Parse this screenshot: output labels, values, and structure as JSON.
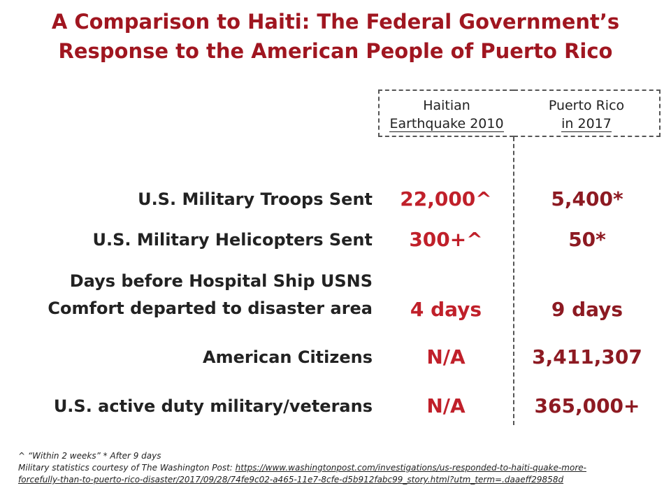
{
  "title": {
    "line1": "A Comparison to Haiti: The Federal Government’s",
    "line2": "Response to the American People of Puerto Rico"
  },
  "columns": {
    "haiti": {
      "line1": "Haitian",
      "line2": "Earthquake 2010"
    },
    "puerto_rico": {
      "line1": "Puerto Rico",
      "line2": "in 2017"
    }
  },
  "rows": [
    {
      "label": "U.S. Military Troops Sent",
      "haiti": "22,000^",
      "puerto_rico": "5,400*"
    },
    {
      "label": "U.S. Military Helicopters Sent",
      "haiti": "300+^",
      "puerto_rico": "50*"
    },
    {
      "label_line1": "Days before Hospital Ship USNS",
      "label_line2": "Comfort departed to disaster area",
      "haiti": "4 days",
      "puerto_rico": "9 days"
    },
    {
      "label": "American Citizens",
      "haiti": "N/A",
      "puerto_rico": "3,411,307"
    },
    {
      "label": "U.S. active duty military/veterans",
      "haiti": "N/A",
      "puerto_rico": "365,000+"
    }
  ],
  "footnotes": {
    "legend": "^ “Within 2 weeks”  * After 9 days",
    "source_prefix": "Military statistics courtesy of The Washington Post: ",
    "source_url_line1": "https://www.washingtonpost.com/investigations/us-responded-to-haiti-quake-more-",
    "source_url_line2": "forcefully-than-to-puerto-rico-disaster/2017/09/28/74fe9c02-a465-11e7-8cfe-d5b912fabc99_story.html?utm_term=.daaeff29858d"
  },
  "colors": {
    "title": "#a01620",
    "haiti_values": "#c0202a",
    "puerto_rico_values": "#8d1a22"
  }
}
